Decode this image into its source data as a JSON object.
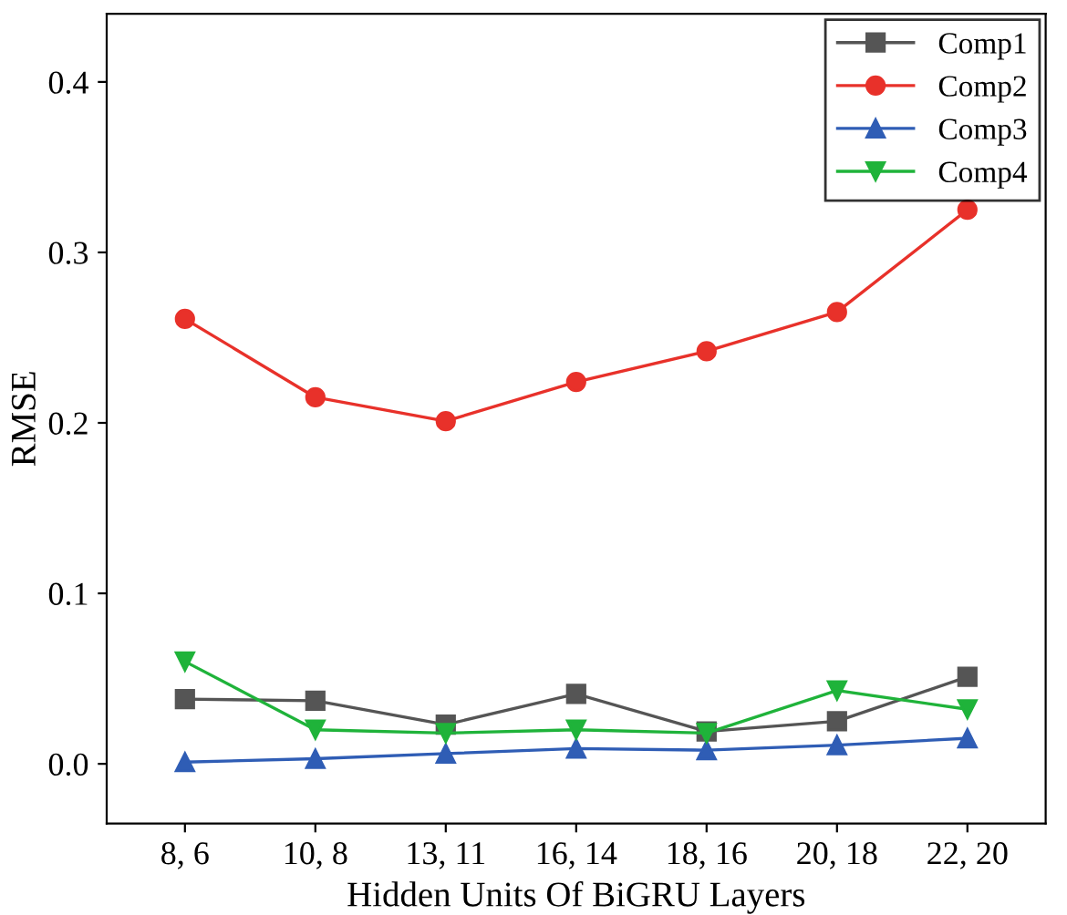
{
  "chart_data": {
    "type": "line",
    "xlabel": "Hidden Units Of BiGRU Layers",
    "ylabel": "RMSE",
    "categories": [
      "8, 6",
      "10, 8",
      "13, 11",
      "16, 14",
      "18, 16",
      "20, 18",
      "22, 20"
    ],
    "series": [
      {
        "name": "Comp1",
        "color": "#555555",
        "marker": "square",
        "values": [
          0.038,
          0.037,
          0.023,
          0.041,
          0.019,
          0.025,
          0.051
        ]
      },
      {
        "name": "Comp2",
        "color": "#e8312a",
        "marker": "circle",
        "values": [
          0.261,
          0.215,
          0.201,
          0.224,
          0.242,
          0.265,
          0.325
        ]
      },
      {
        "name": "Comp3",
        "color": "#2f5db5",
        "marker": "triangle",
        "values": [
          0.001,
          0.003,
          0.006,
          0.009,
          0.008,
          0.011,
          0.015
        ]
      },
      {
        "name": "Comp4",
        "color": "#1fb33a",
        "marker": "triangle_down",
        "values": [
          0.06,
          0.02,
          0.018,
          0.02,
          0.018,
          0.043,
          0.032
        ]
      }
    ],
    "ylim": [
      -0.035,
      0.44
    ],
    "yticks": [
      {
        "value": 0,
        "label": "0.0"
      },
      {
        "value": 0.1,
        "label": "0.1"
      },
      {
        "value": 0.2,
        "label": "0.2"
      },
      {
        "value": 0.3,
        "label": "0.3"
      },
      {
        "value": 0.4,
        "label": "0.4"
      }
    ],
    "legend": "top right",
    "grid": false,
    "line_style": "solid"
  }
}
